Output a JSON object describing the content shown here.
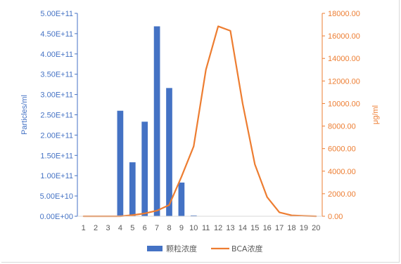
{
  "chart_data": {
    "type": "bar+line",
    "categories": [
      "1",
      "2",
      "3",
      "4",
      "5",
      "6",
      "7",
      "8",
      "9",
      "10",
      "11",
      "12",
      "13",
      "14",
      "15",
      "16",
      "17",
      "18",
      "19",
      "20"
    ],
    "series": [
      {
        "name": "颗粒浓度",
        "type": "bar",
        "axis": "left",
        "color": "#4472C4",
        "values": [
          0,
          0,
          0,
          260000000000.0,
          133000000000.0,
          233000000000.0,
          468000000000.0,
          316000000000.0,
          83000000000.0,
          2000000000.0,
          0,
          0,
          0,
          0,
          0,
          0,
          0,
          0,
          0,
          0
        ]
      },
      {
        "name": "BCA浓度",
        "type": "line",
        "axis": "right",
        "color": "#ED7D31",
        "values": [
          0,
          0,
          0,
          0,
          100,
          250,
          500,
          1000,
          3500,
          6200,
          13000,
          16850,
          16450,
          10000,
          4600,
          1700,
          350,
          80,
          30,
          0
        ]
      }
    ],
    "y_left": {
      "label": "Particles/ml",
      "range": [
        0,
        500000000000.0
      ],
      "ticks": [
        "0.00E+00",
        "5.00E+10",
        "1.00E+11",
        "1.50E+11",
        "2.00E+11",
        "2.50E+11",
        "3.00E+11",
        "3.50E+11",
        "4.00E+11",
        "4.50E+11",
        "5.00E+11"
      ],
      "color": "#4472C4"
    },
    "y_right": {
      "label": "μg/ml",
      "range": [
        0,
        18000
      ],
      "ticks": [
        "0.00",
        "2000.00",
        "4000.00",
        "6000.00",
        "8000.00",
        "10000.00",
        "12000.00",
        "14000.00",
        "16000.00",
        "18000.00"
      ],
      "color": "#ED7D31"
    },
    "grid": false,
    "legend_position": "bottom"
  }
}
